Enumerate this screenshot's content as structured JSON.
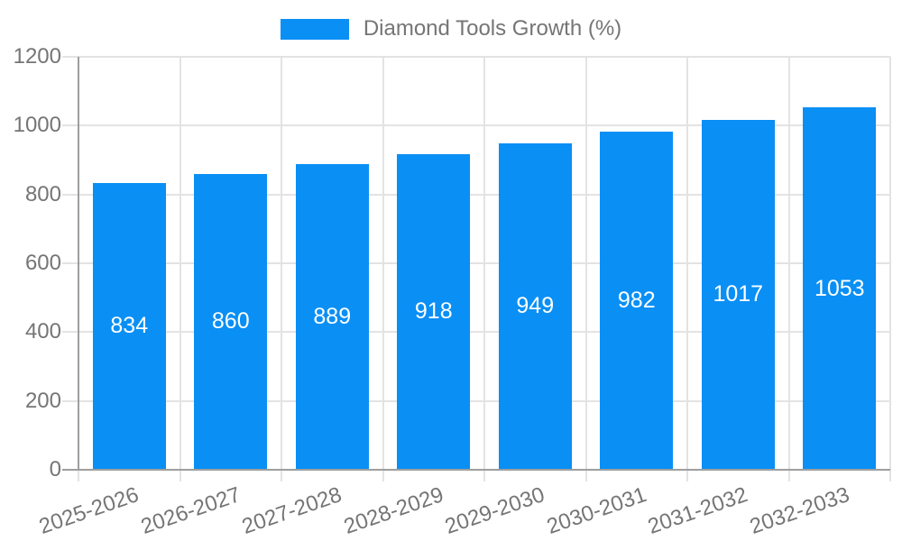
{
  "legend": {
    "label": "Diamond Tools Growth (%)"
  },
  "chart_data": {
    "type": "bar",
    "title": "Diamond Tools Growth (%)",
    "categories": [
      "2025-2026",
      "2026-2027",
      "2027-2028",
      "2028-2029",
      "2029-2030",
      "2030-2031",
      "2031-2032",
      "2032-2033"
    ],
    "values": [
      834,
      860,
      889,
      918,
      949,
      982,
      1017,
      1053
    ],
    "value_labels": [
      "834",
      "860",
      "889",
      "918",
      "949",
      "982",
      "1017",
      "1053"
    ],
    "xlabel": "",
    "ylabel": "",
    "ylim": [
      0,
      1200
    ],
    "yticks": [
      0,
      200,
      400,
      600,
      800,
      1000,
      1200
    ],
    "grid": true,
    "legend_position": "top",
    "bar_color": "#0a8ff5",
    "value_label_color": "#ffffff",
    "grid_color": "#e3e3e3",
    "axis_color": "#9e9e9e",
    "tick_label_color": "#757575",
    "x_label_rotation_deg": -19
  }
}
